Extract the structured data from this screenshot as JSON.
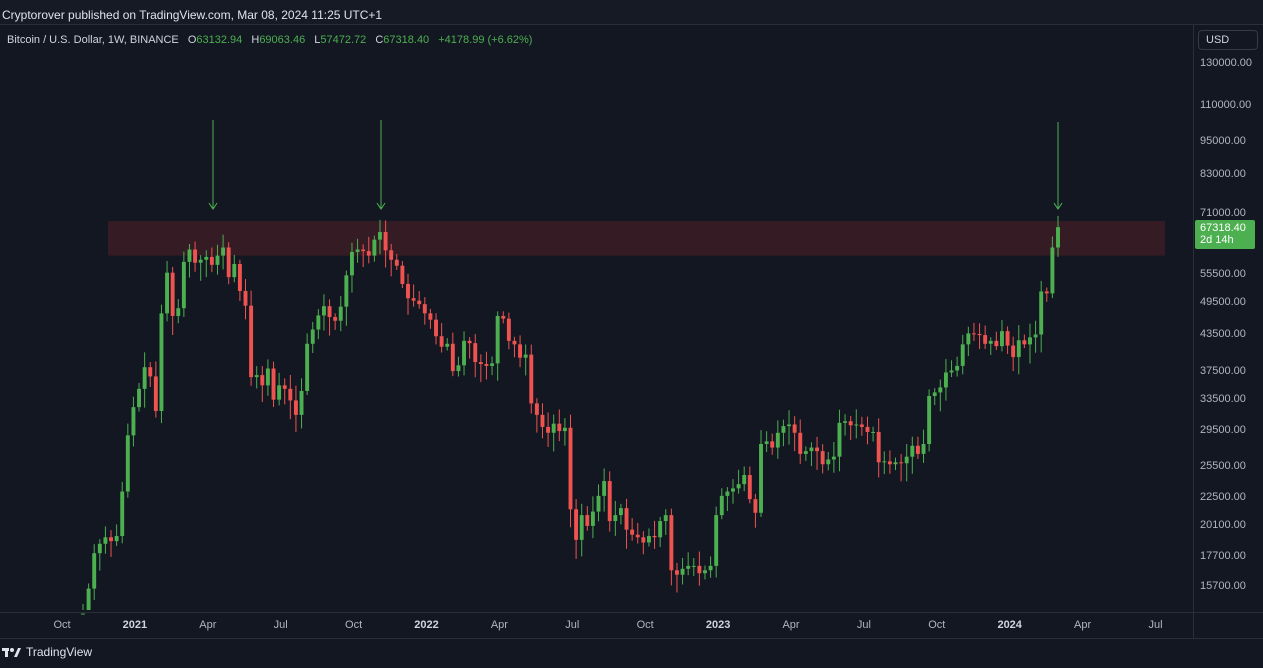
{
  "publisher_line": "Cryptorover published on TradingView.com, Mar 08, 2024 11:25 UTC+1",
  "legend": {
    "symbol": "Bitcoin / U.S. Dollar, 1W, BINANCE",
    "o_key": "O",
    "o_val": "63132.94",
    "h_key": "H",
    "h_val": "69063.46",
    "l_key": "L",
    "l_val": "57472.72",
    "c_key": "C",
    "c_val": "67318.40",
    "change": "+4178.99 (+6.62%)"
  },
  "currency_button": "USD",
  "last_price": {
    "price": "67318.40",
    "countdown": "2d 14h"
  },
  "brand": "TradingView",
  "colors": {
    "up": "#4caf50",
    "down": "#ef5350",
    "zone": "#3a1c25",
    "arrow": "#4caf50"
  },
  "icons": [
    "tradingview-logo-icon",
    "down-arrow-icon"
  ],
  "chart_data": {
    "type": "candlestick",
    "title": "Bitcoin / U.S. Dollar, 1W, BINANCE",
    "y_scale": "log",
    "price_ticks": [
      "130000.00",
      "110000.00",
      "95000.00",
      "83000.00",
      "71000.00",
      "55500.00",
      "49500.00",
      "43500.00",
      "37500.00",
      "33500.00",
      "29500.00",
      "25500.00",
      "22500.00",
      "20100.00",
      "17700.00",
      "15700.00"
    ],
    "time_ticks": [
      {
        "label": "Oct",
        "bold": false
      },
      {
        "label": "2021",
        "bold": true
      },
      {
        "label": "Apr",
        "bold": false
      },
      {
        "label": "Jul",
        "bold": false
      },
      {
        "label": "Oct",
        "bold": false
      },
      {
        "label": "2022",
        "bold": true
      },
      {
        "label": "Apr",
        "bold": false
      },
      {
        "label": "Jul",
        "bold": false
      },
      {
        "label": "Oct",
        "bold": false
      },
      {
        "label": "2023",
        "bold": true
      },
      {
        "label": "Apr",
        "bold": false
      },
      {
        "label": "Jul",
        "bold": false
      },
      {
        "label": "Oct",
        "bold": false
      },
      {
        "label": "2024",
        "bold": true
      },
      {
        "label": "Apr",
        "bold": false
      },
      {
        "label": "Jul",
        "bold": false
      }
    ],
    "resistance_zone": {
      "low": 60000,
      "high": 69000
    },
    "arrows": [
      "Apr 2021",
      "Nov 2021",
      "Mar 2024"
    ],
    "closes": [
      14100,
      15600,
      18000,
      18700,
      19200,
      18900,
      19300,
      23100,
      29000,
      32500,
      35000,
      38200,
      36800,
      32000,
      47500,
      56000,
      47000,
      48500,
      58500,
      61500,
      58300,
      59000,
      59700,
      57800,
      60000,
      62000,
      55000,
      58000,
      52000,
      49000,
      36700,
      37000,
      35500,
      38000,
      33500,
      35500,
      35000,
      33400,
      31500,
      34700,
      42000,
      44500,
      47100,
      48900,
      46800,
      46100,
      48800,
      55400,
      60900,
      61500,
      61100,
      60000,
      64000,
      66000,
      61300,
      59000,
      57600,
      53500,
      50500,
      50000,
      49300,
      47500,
      46300,
      43300,
      41500,
      42000,
      37600,
      38500,
      42500,
      42100,
      39000,
      38700,
      38400,
      38800,
      47000,
      46500,
      42500,
      41900,
      39700,
      40200,
      33000,
      31500,
      30000,
      29300,
      30400,
      29500,
      29900,
      21500,
      19000,
      21000,
      20100,
      21300,
      22700,
      24100,
      20500,
      21000,
      21600,
      19800,
      19400,
      19200,
      18800,
      19300,
      19200,
      20500,
      21000,
      16800,
      16500,
      16900,
      17100,
      17100,
      16600,
      16800,
      17100,
      21000,
      22700,
      23100,
      23400,
      23800,
      24700,
      22400,
      21200,
      28000,
      28300,
      27600,
      29300,
      30100,
      30300,
      29300,
      26900,
      27200,
      27600,
      27200,
      25800,
      26300,
      26600,
      30500,
      30700,
      30200,
      30300,
      30000,
      29400,
      29400,
      26000,
      26100,
      25800,
      26000,
      25900,
      26600,
      27800,
      26900,
      28000,
      34000,
      34500,
      35200,
      37400,
      37700,
      38400,
      41900,
      43800,
      43700,
      43500,
      42000,
      42500,
      41600,
      44200,
      41700,
      39800,
      42600,
      41900,
      43100,
      43600,
      51900,
      51500,
      62000,
      67318
    ]
  }
}
